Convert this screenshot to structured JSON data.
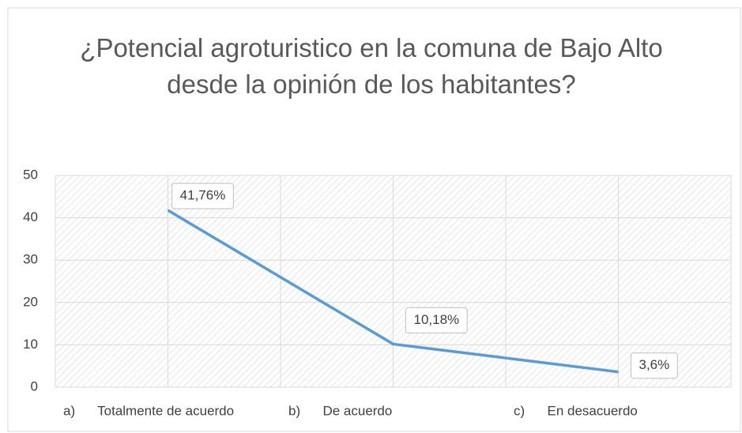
{
  "chart_data": {
    "type": "line",
    "title": "¿Potencial agroturistico en la comuna de Bajo Alto desde la opinión de los habitantes?",
    "categories": [
      "a)      Totalmente de acuerdo",
      "b)      De acuerdo",
      "c)      En desacuerdo"
    ],
    "series": [
      {
        "color": "#5b9bd5",
        "values": [
          41.76,
          10.18,
          3.6
        ],
        "value_labels": [
          "41,76%",
          "10,18%",
          "3,6%"
        ]
      }
    ],
    "ylim": [
      0,
      50
    ],
    "yticks": [
      0,
      10,
      20,
      30,
      40,
      50
    ],
    "grid": true
  }
}
